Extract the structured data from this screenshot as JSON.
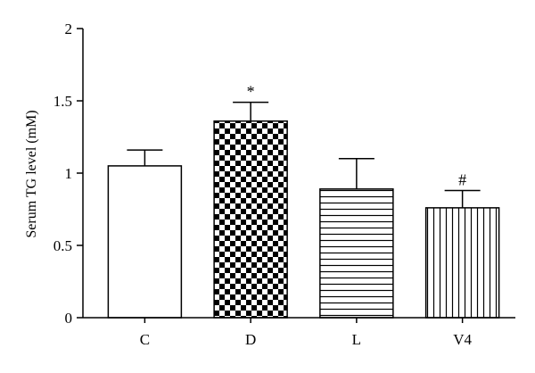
{
  "chart_data": {
    "type": "bar",
    "title": "",
    "xlabel": "",
    "ylabel": "Serum TG level (mM)",
    "ylim": [
      0,
      2
    ],
    "yticks": [
      0,
      0.5,
      1,
      1.5,
      2
    ],
    "ytick_labels": [
      "0",
      "0.5",
      "1",
      "1.5",
      "2"
    ],
    "grid": false,
    "categories": [
      "C",
      "D",
      "L",
      "V4"
    ],
    "values": [
      1.05,
      1.36,
      0.89,
      0.76
    ],
    "errors": [
      0.11,
      0.13,
      0.21,
      0.12
    ],
    "patterns": [
      "solid-white",
      "checkerboard",
      "horizontal-lines",
      "vertical-lines"
    ],
    "annotations": [
      "",
      "*",
      "",
      "#"
    ],
    "colors": {
      "bar_fill": "#ffffff",
      "pattern": "#000000",
      "axis": "#000000"
    }
  }
}
